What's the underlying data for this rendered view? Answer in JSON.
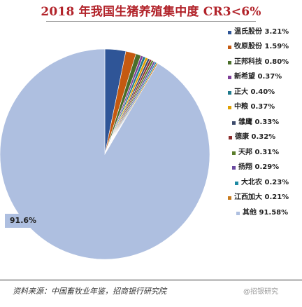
{
  "chart_data": {
    "type": "pie",
    "title": "2018 年我国生猪养殖集中度 CR3<6%",
    "categories": [
      "温氏股份",
      "牧原股份",
      "正邦科技",
      "新希望",
      "正大",
      "中粮",
      "雏鹰",
      "德康",
      "天邦",
      "扬翔",
      "大北农",
      "江西加大",
      "其他"
    ],
    "values": [
      3.21,
      1.59,
      0.8,
      0.37,
      0.4,
      0.37,
      0.33,
      0.32,
      0.31,
      0.29,
      0.23,
      0.21,
      91.58
    ],
    "labels": [
      "温氏股份 3.21%",
      "牧原股份 1.59%",
      "正邦科技 0.80%",
      "新希望 0.37%",
      "正大 0.40%",
      "中粮 0.37%",
      "雏鹰 0.33%",
      "德康 0.32%",
      "天邦 0.31%",
      "扬翔 0.29%",
      "大北农 0.23%",
      "江西加大 0.21%",
      "其他 91.58%"
    ],
    "colors": [
      "#2f5597",
      "#c55a11",
      "#4a6e2a",
      "#7e3f98",
      "#1f7a8c",
      "#e0a000",
      "#3b4a6b",
      "#8c2d2d",
      "#5a7d2b",
      "#6b4aa0",
      "#1e8aa3",
      "#c87a1c",
      "#aebfe0"
    ],
    "slice_label": "91.6%",
    "legend_position": "right"
  },
  "footer": {
    "source": "资料来源：中国畜牧业年鉴，招商银行研究院",
    "watermark": "@招银研究"
  }
}
